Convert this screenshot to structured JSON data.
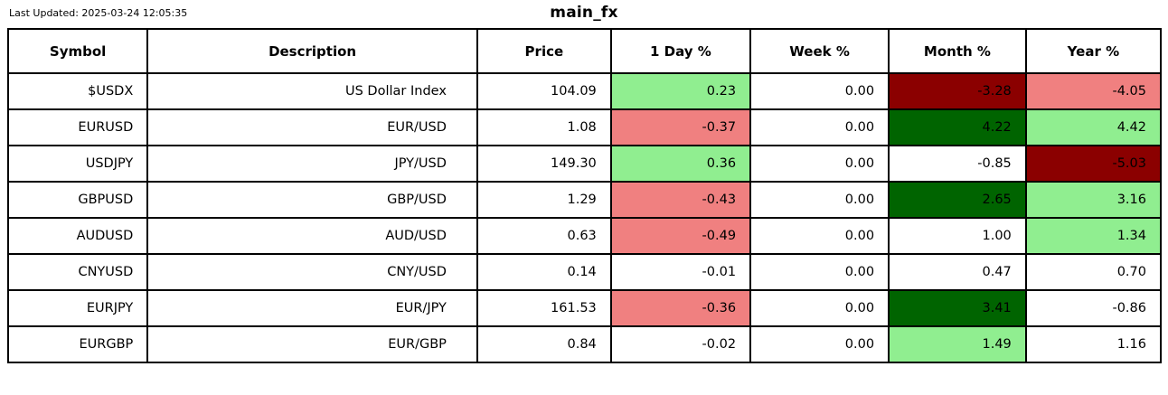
{
  "header": {
    "last_updated": "Last Updated: 2025-03-24 12:05:35",
    "title": "main_fx"
  },
  "chart_data": {
    "type": "table",
    "title": "main_fx",
    "columns": [
      "Symbol",
      "Description",
      "Price",
      "1 Day %",
      "Week %",
      "Month %",
      "Year %"
    ],
    "cell_colors": {
      "strong_gain": "#006400",
      "gain": "#90ee90",
      "loss": "#f08080",
      "strong_loss": "#8b0000",
      "neutral": "#ffffff"
    },
    "rows": [
      {
        "symbol": "$USDX",
        "description": "US Dollar Index",
        "price": "104.09",
        "day": "0.23",
        "day_bg": "#90ee90",
        "week": "0.00",
        "week_bg": "#ffffff",
        "month": "-3.28",
        "month_bg": "#8b0000",
        "year": "-4.05",
        "year_bg": "#f08080"
      },
      {
        "symbol": "EURUSD",
        "description": "EUR/USD",
        "price": "1.08",
        "day": "-0.37",
        "day_bg": "#f08080",
        "week": "0.00",
        "week_bg": "#ffffff",
        "month": "4.22",
        "month_bg": "#006400",
        "year": "4.42",
        "year_bg": "#90ee90"
      },
      {
        "symbol": "USDJPY",
        "description": "JPY/USD",
        "price": "149.30",
        "day": "0.36",
        "day_bg": "#90ee90",
        "week": "0.00",
        "week_bg": "#ffffff",
        "month": "-0.85",
        "month_bg": "#ffffff",
        "year": "-5.03",
        "year_bg": "#8b0000"
      },
      {
        "symbol": "GBPUSD",
        "description": "GBP/USD",
        "price": "1.29",
        "day": "-0.43",
        "day_bg": "#f08080",
        "week": "0.00",
        "week_bg": "#ffffff",
        "month": "2.65",
        "month_bg": "#006400",
        "year": "3.16",
        "year_bg": "#90ee90"
      },
      {
        "symbol": "AUDUSD",
        "description": "AUD/USD",
        "price": "0.63",
        "day": "-0.49",
        "day_bg": "#f08080",
        "week": "0.00",
        "week_bg": "#ffffff",
        "month": "1.00",
        "month_bg": "#ffffff",
        "year": "1.34",
        "year_bg": "#90ee90"
      },
      {
        "symbol": "CNYUSD",
        "description": "CNY/USD",
        "price": "0.14",
        "day": "-0.01",
        "day_bg": "#ffffff",
        "week": "0.00",
        "week_bg": "#ffffff",
        "month": "0.47",
        "month_bg": "#ffffff",
        "year": "0.70",
        "year_bg": "#ffffff"
      },
      {
        "symbol": "EURJPY",
        "description": "EUR/JPY",
        "price": "161.53",
        "day": "-0.36",
        "day_bg": "#f08080",
        "week": "0.00",
        "week_bg": "#ffffff",
        "month": "3.41",
        "month_bg": "#006400",
        "year": "-0.86",
        "year_bg": "#ffffff"
      },
      {
        "symbol": "EURGBP",
        "description": "EUR/GBP",
        "price": "0.84",
        "day": "-0.02",
        "day_bg": "#ffffff",
        "week": "0.00",
        "week_bg": "#ffffff",
        "month": "1.49",
        "month_bg": "#90ee90",
        "year": "1.16",
        "year_bg": "#ffffff"
      }
    ]
  }
}
